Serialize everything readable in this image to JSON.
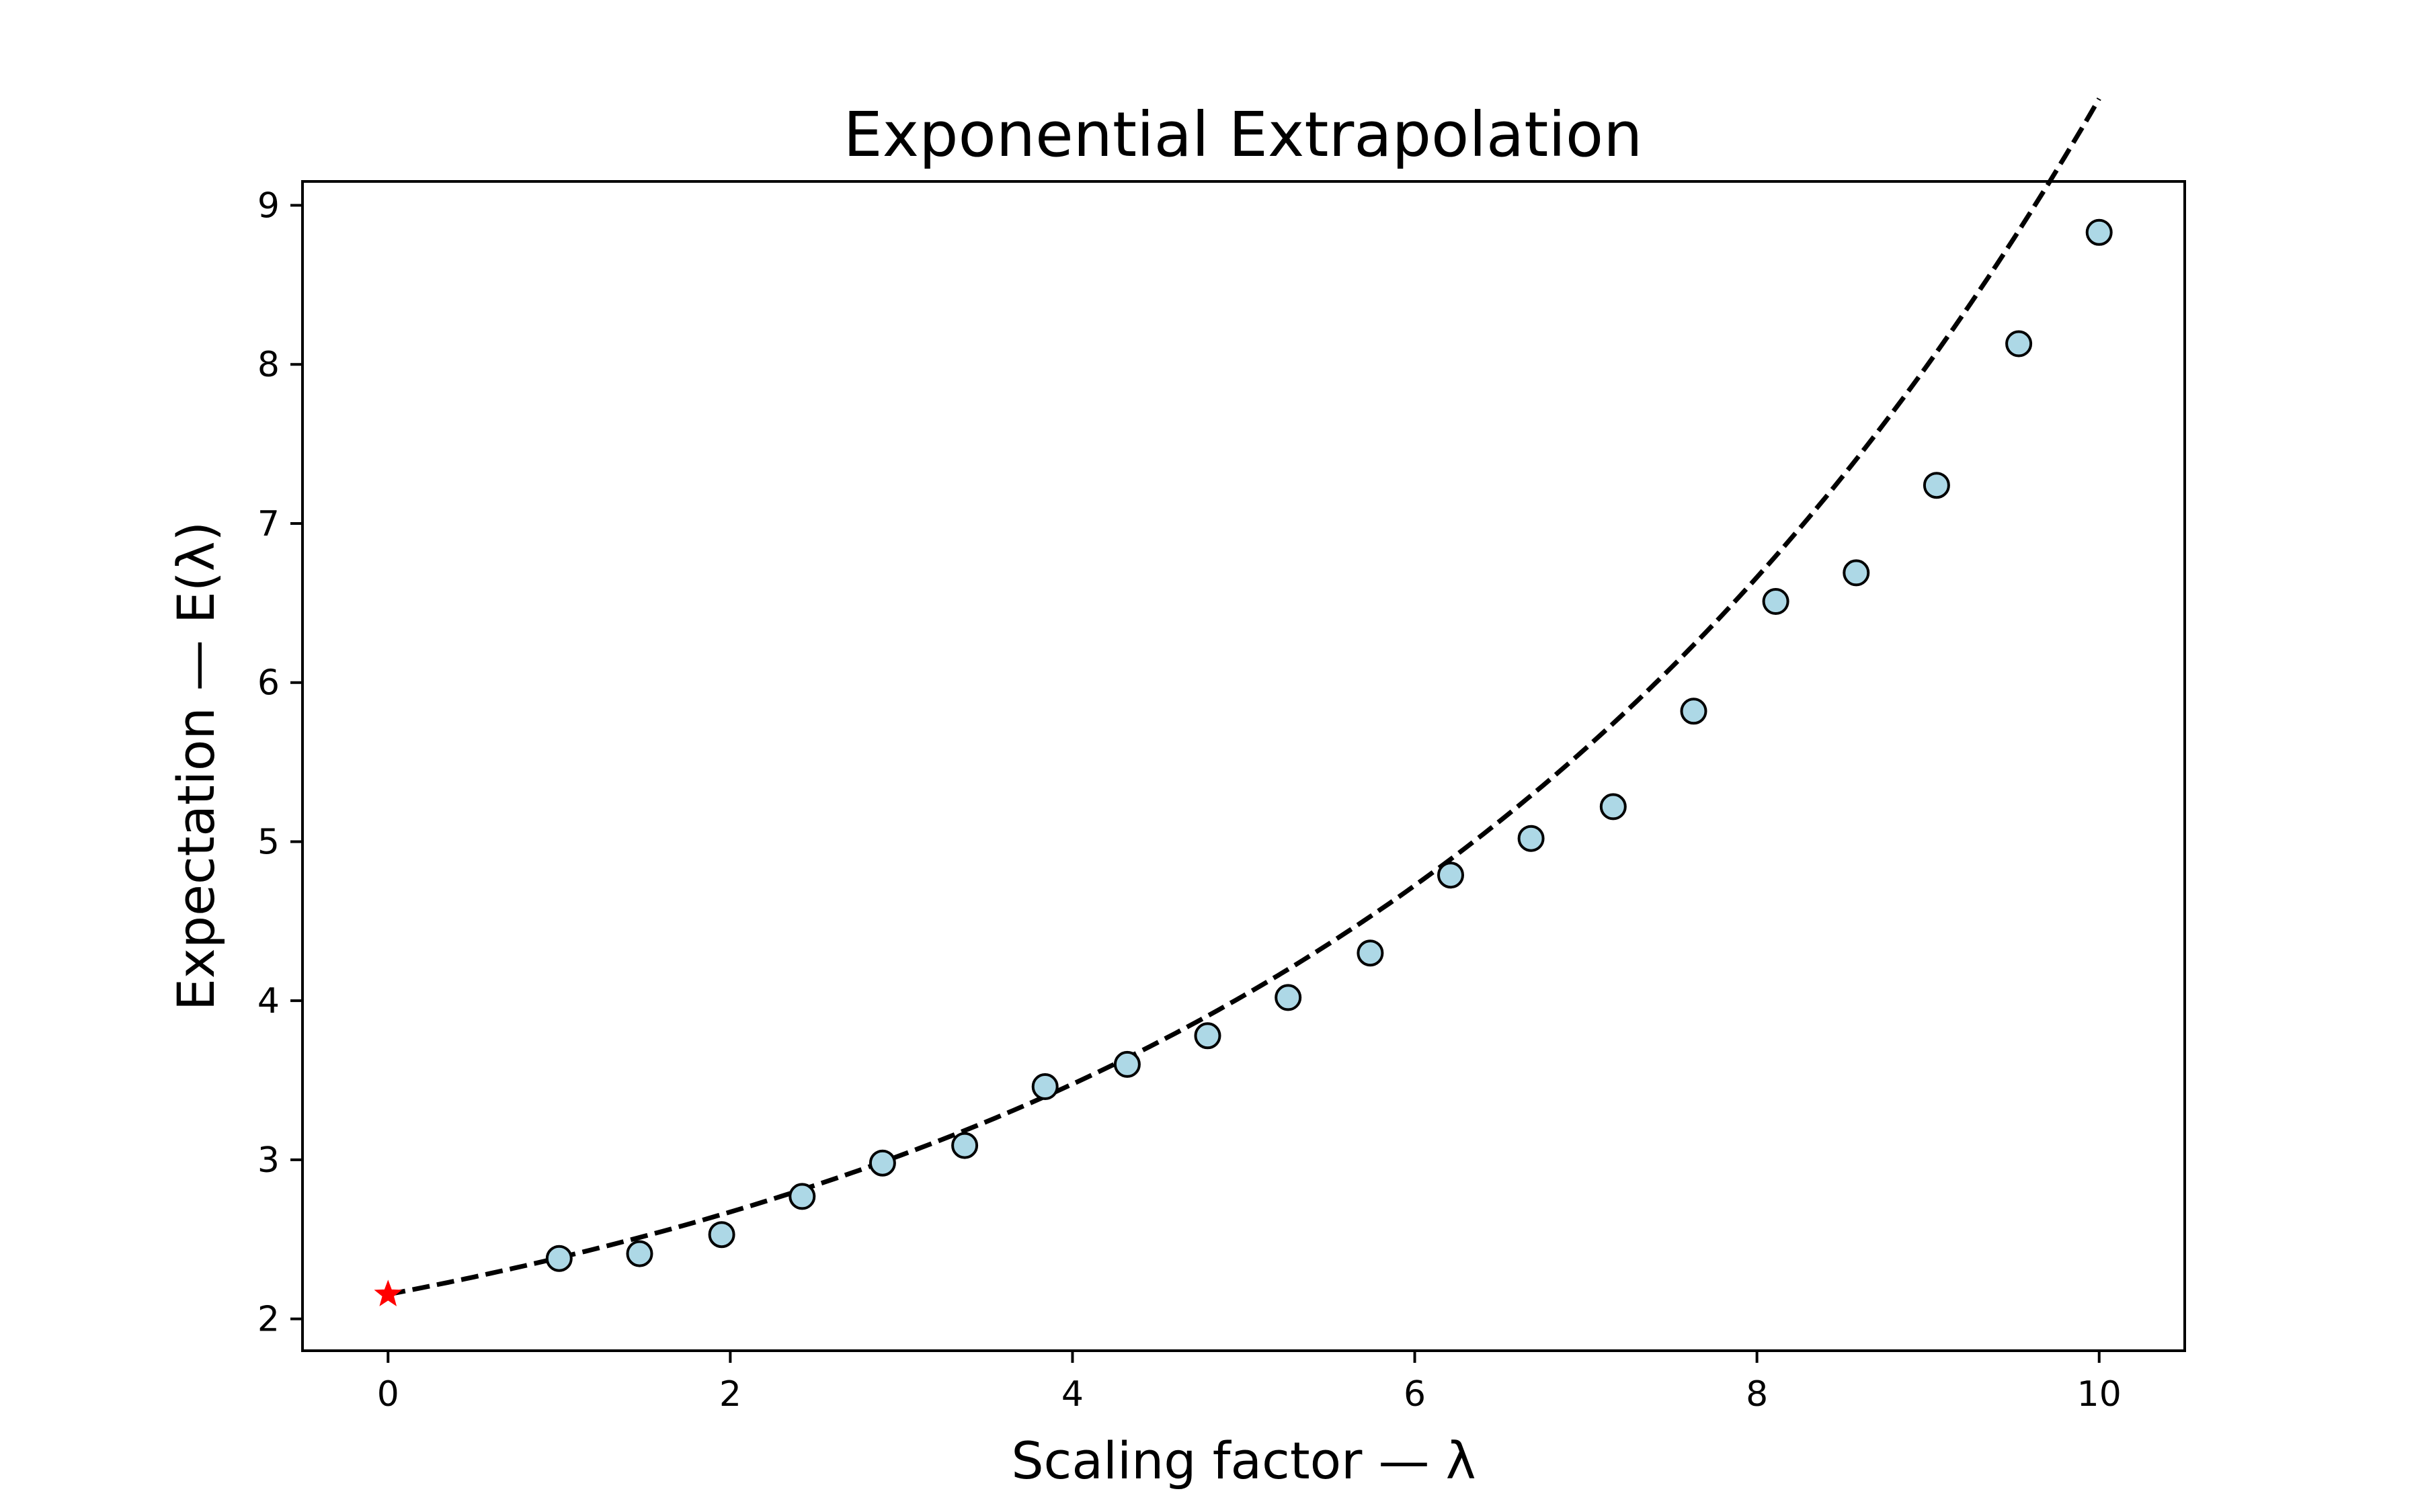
{
  "chart_data": {
    "type": "scatter",
    "title": "Exponential Extrapolation",
    "xlabel": "Scaling factor — λ",
    "ylabel": "Expectation — E(λ)",
    "xlim": [
      -0.5,
      10.5
    ],
    "ylim": [
      1.8,
      9.15
    ],
    "x_ticks": [
      0,
      2,
      4,
      6,
      8,
      10
    ],
    "y_ticks": [
      2,
      3,
      4,
      5,
      6,
      7,
      8,
      9
    ],
    "grid": false,
    "series": [
      {
        "kind": "scatter",
        "marker": "circle",
        "color": "#add8e6",
        "edge_color": "#000000",
        "x": [
          1.0,
          1.47,
          1.95,
          2.42,
          2.89,
          3.37,
          3.84,
          4.32,
          4.79,
          5.26,
          5.74,
          6.21,
          6.68,
          7.16,
          7.63,
          8.11,
          8.58,
          9.05,
          9.53,
          10.0
        ],
        "y": [
          2.38,
          2.41,
          2.53,
          2.77,
          2.98,
          3.09,
          3.46,
          3.6,
          3.78,
          4.02,
          4.3,
          4.79,
          5.02,
          5.22,
          5.82,
          6.51,
          6.69,
          7.24,
          8.13,
          8.83
        ]
      },
      {
        "kind": "fit",
        "style": "dashed",
        "color": "#000000",
        "model": "exponential",
        "params": {
          "a": 0.9376,
          "b": 0.2199,
          "c": 1.2166
        },
        "x_range": [
          0,
          10
        ]
      },
      {
        "kind": "extrapolated_point",
        "marker": "star",
        "color": "#ff0000",
        "x": [
          0
        ],
        "y": [
          2.154
        ]
      }
    ]
  }
}
